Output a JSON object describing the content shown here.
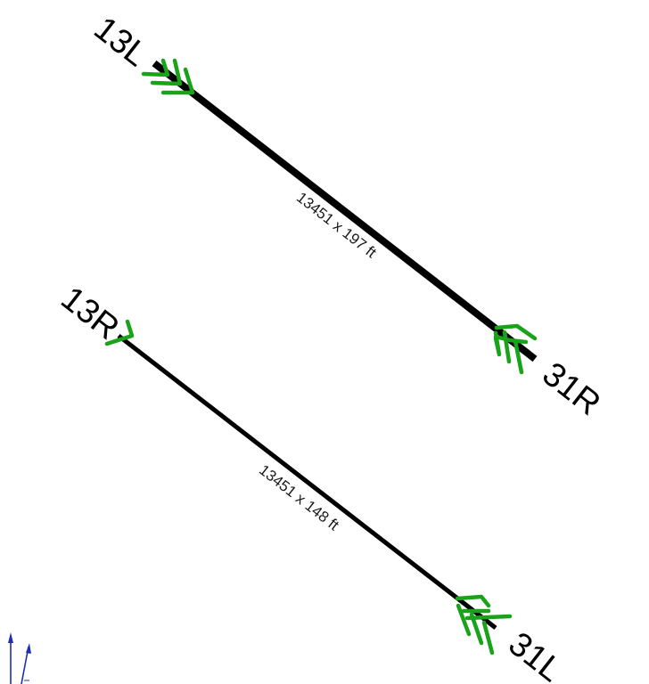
{
  "colors": {
    "runway": "#000000",
    "approach_chevrons": "#1aa31a",
    "north_arrow": "#1f2fb0",
    "label": "#000000"
  },
  "runways": [
    {
      "id": "13L-31R",
      "ends": [
        "13L",
        "31R"
      ],
      "dimensions": "13451 x 197 ft",
      "chevrons": [
        3,
        3
      ]
    },
    {
      "id": "13R-31L",
      "ends": [
        "13R",
        "31L"
      ],
      "dimensions": "13451 x 148 ft",
      "chevrons": [
        1,
        3
      ]
    }
  ],
  "north_arrow": {
    "icon": "north-arrow-icon"
  }
}
